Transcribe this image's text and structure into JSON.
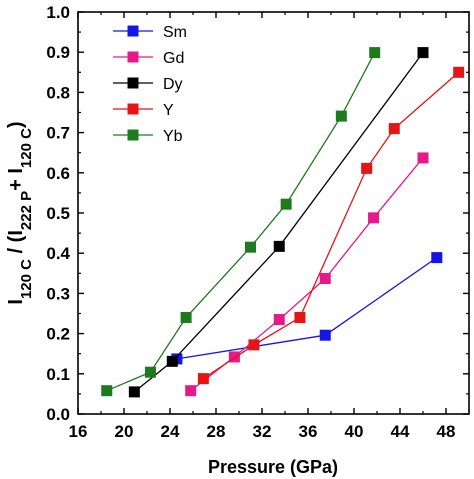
{
  "chart_data": {
    "type": "line",
    "title": "",
    "xlabel": "Pressure (GPa)",
    "ylabel": {
      "parts": [
        {
          "text": "I",
          "sub": false
        },
        {
          "text": "120 C",
          "sub": true
        },
        {
          "text": " / (I",
          "sub": false
        },
        {
          "text": "222 P",
          "sub": true
        },
        {
          "text": "+ I",
          "sub": false
        },
        {
          "text": "120 C",
          "sub": true
        },
        {
          "text": ")",
          "sub": false
        }
      ]
    },
    "xlim": [
      16,
      50
    ],
    "ylim": [
      0.0,
      1.0
    ],
    "xticks": [
      "16",
      "20",
      "24",
      "28",
      "32",
      "36",
      "40",
      "44",
      "48"
    ],
    "yticks": [
      "0.0",
      "0.1",
      "0.2",
      "0.3",
      "0.4",
      "0.5",
      "0.6",
      "0.7",
      "0.8",
      "0.9",
      "1.0"
    ],
    "grid": false,
    "legend": "top-left",
    "series": [
      {
        "name": "Sm",
        "color": "#1515e6",
        "marker": "square",
        "x": [
          24.6,
          37.5,
          47.2
        ],
        "y": [
          0.137,
          0.196,
          0.389
        ]
      },
      {
        "name": "Gd",
        "color": "#e6198a",
        "marker": "square",
        "x": [
          25.8,
          29.6,
          33.5,
          37.5,
          41.7,
          46.0
        ],
        "y": [
          0.058,
          0.142,
          0.235,
          0.337,
          0.488,
          0.637
        ]
      },
      {
        "name": "Dy",
        "color": "#000000",
        "marker": "square",
        "x": [
          20.9,
          24.2,
          33.5,
          46.0
        ],
        "y": [
          0.055,
          0.131,
          0.417,
          0.899
        ]
      },
      {
        "name": "Y",
        "color": "#e61414",
        "marker": "square",
        "x": [
          26.9,
          31.3,
          35.3,
          41.1,
          43.5,
          49.1
        ],
        "y": [
          0.088,
          0.172,
          0.24,
          0.611,
          0.71,
          0.85
        ]
      },
      {
        "name": "Yb",
        "color": "#1e7a1e",
        "marker": "square",
        "x": [
          18.5,
          22.3,
          25.4,
          31.0,
          34.1,
          38.9,
          41.8
        ],
        "y": [
          0.058,
          0.104,
          0.24,
          0.415,
          0.522,
          0.741,
          0.899
        ]
      }
    ]
  }
}
